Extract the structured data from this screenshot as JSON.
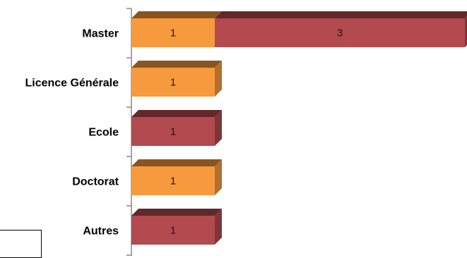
{
  "chart_data": {
    "type": "bar",
    "orientation": "horizontal",
    "stacked": true,
    "style": "3d",
    "categories": [
      "Master",
      "Licence Générale",
      "Ecole",
      "Doctorat",
      "Autres"
    ],
    "series": [
      {
        "color": "#f79a3e",
        "values": [
          1,
          1,
          null,
          1,
          null
        ]
      },
      {
        "color": "#b24a4f",
        "values": [
          3,
          null,
          1,
          null,
          1
        ]
      }
    ],
    "title": "",
    "xlabel": "",
    "ylabel": "",
    "xlim": [
      0,
      4
    ],
    "grid": false,
    "legend": "bottom-left"
  }
}
